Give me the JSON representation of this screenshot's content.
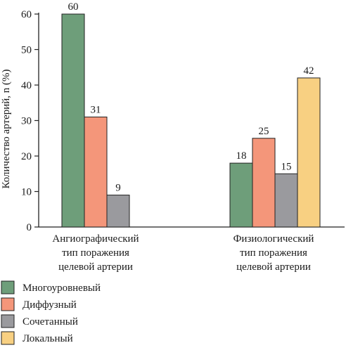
{
  "chart_data": {
    "type": "bar",
    "ylabel": "Количество артерий, n (%)",
    "ylim": [
      0,
      60
    ],
    "yticks": [
      0,
      10,
      20,
      30,
      40,
      50,
      60
    ],
    "categories": [
      [
        "Ангиографический",
        "тип поражения",
        "целевой артерии"
      ],
      [
        "Физиологический",
        "тип поражения",
        "целевой артерии"
      ]
    ],
    "groups": [
      {
        "bars": [
          {
            "series": "Многоуровневый",
            "value": 60
          },
          {
            "series": "Диффузный",
            "value": 31
          },
          {
            "series": "Сочетанный",
            "value": 9
          }
        ]
      },
      {
        "bars": [
          {
            "series": "Многоуровневый",
            "value": 18
          },
          {
            "series": "Диффузный",
            "value": 25
          },
          {
            "series": "Сочетанный",
            "value": 15
          },
          {
            "series": "Локальный",
            "value": 42
          }
        ]
      }
    ],
    "series": [
      {
        "name": "Многоуровневый",
        "color": "#6e9e7a"
      },
      {
        "name": "Диффузный",
        "color": "#f4967a"
      },
      {
        "name": "Сочетанный",
        "color": "#9a9a9e"
      },
      {
        "name": "Локальный",
        "color": "#f8d082"
      }
    ],
    "legend_position": "bottom-left",
    "grid": false
  }
}
